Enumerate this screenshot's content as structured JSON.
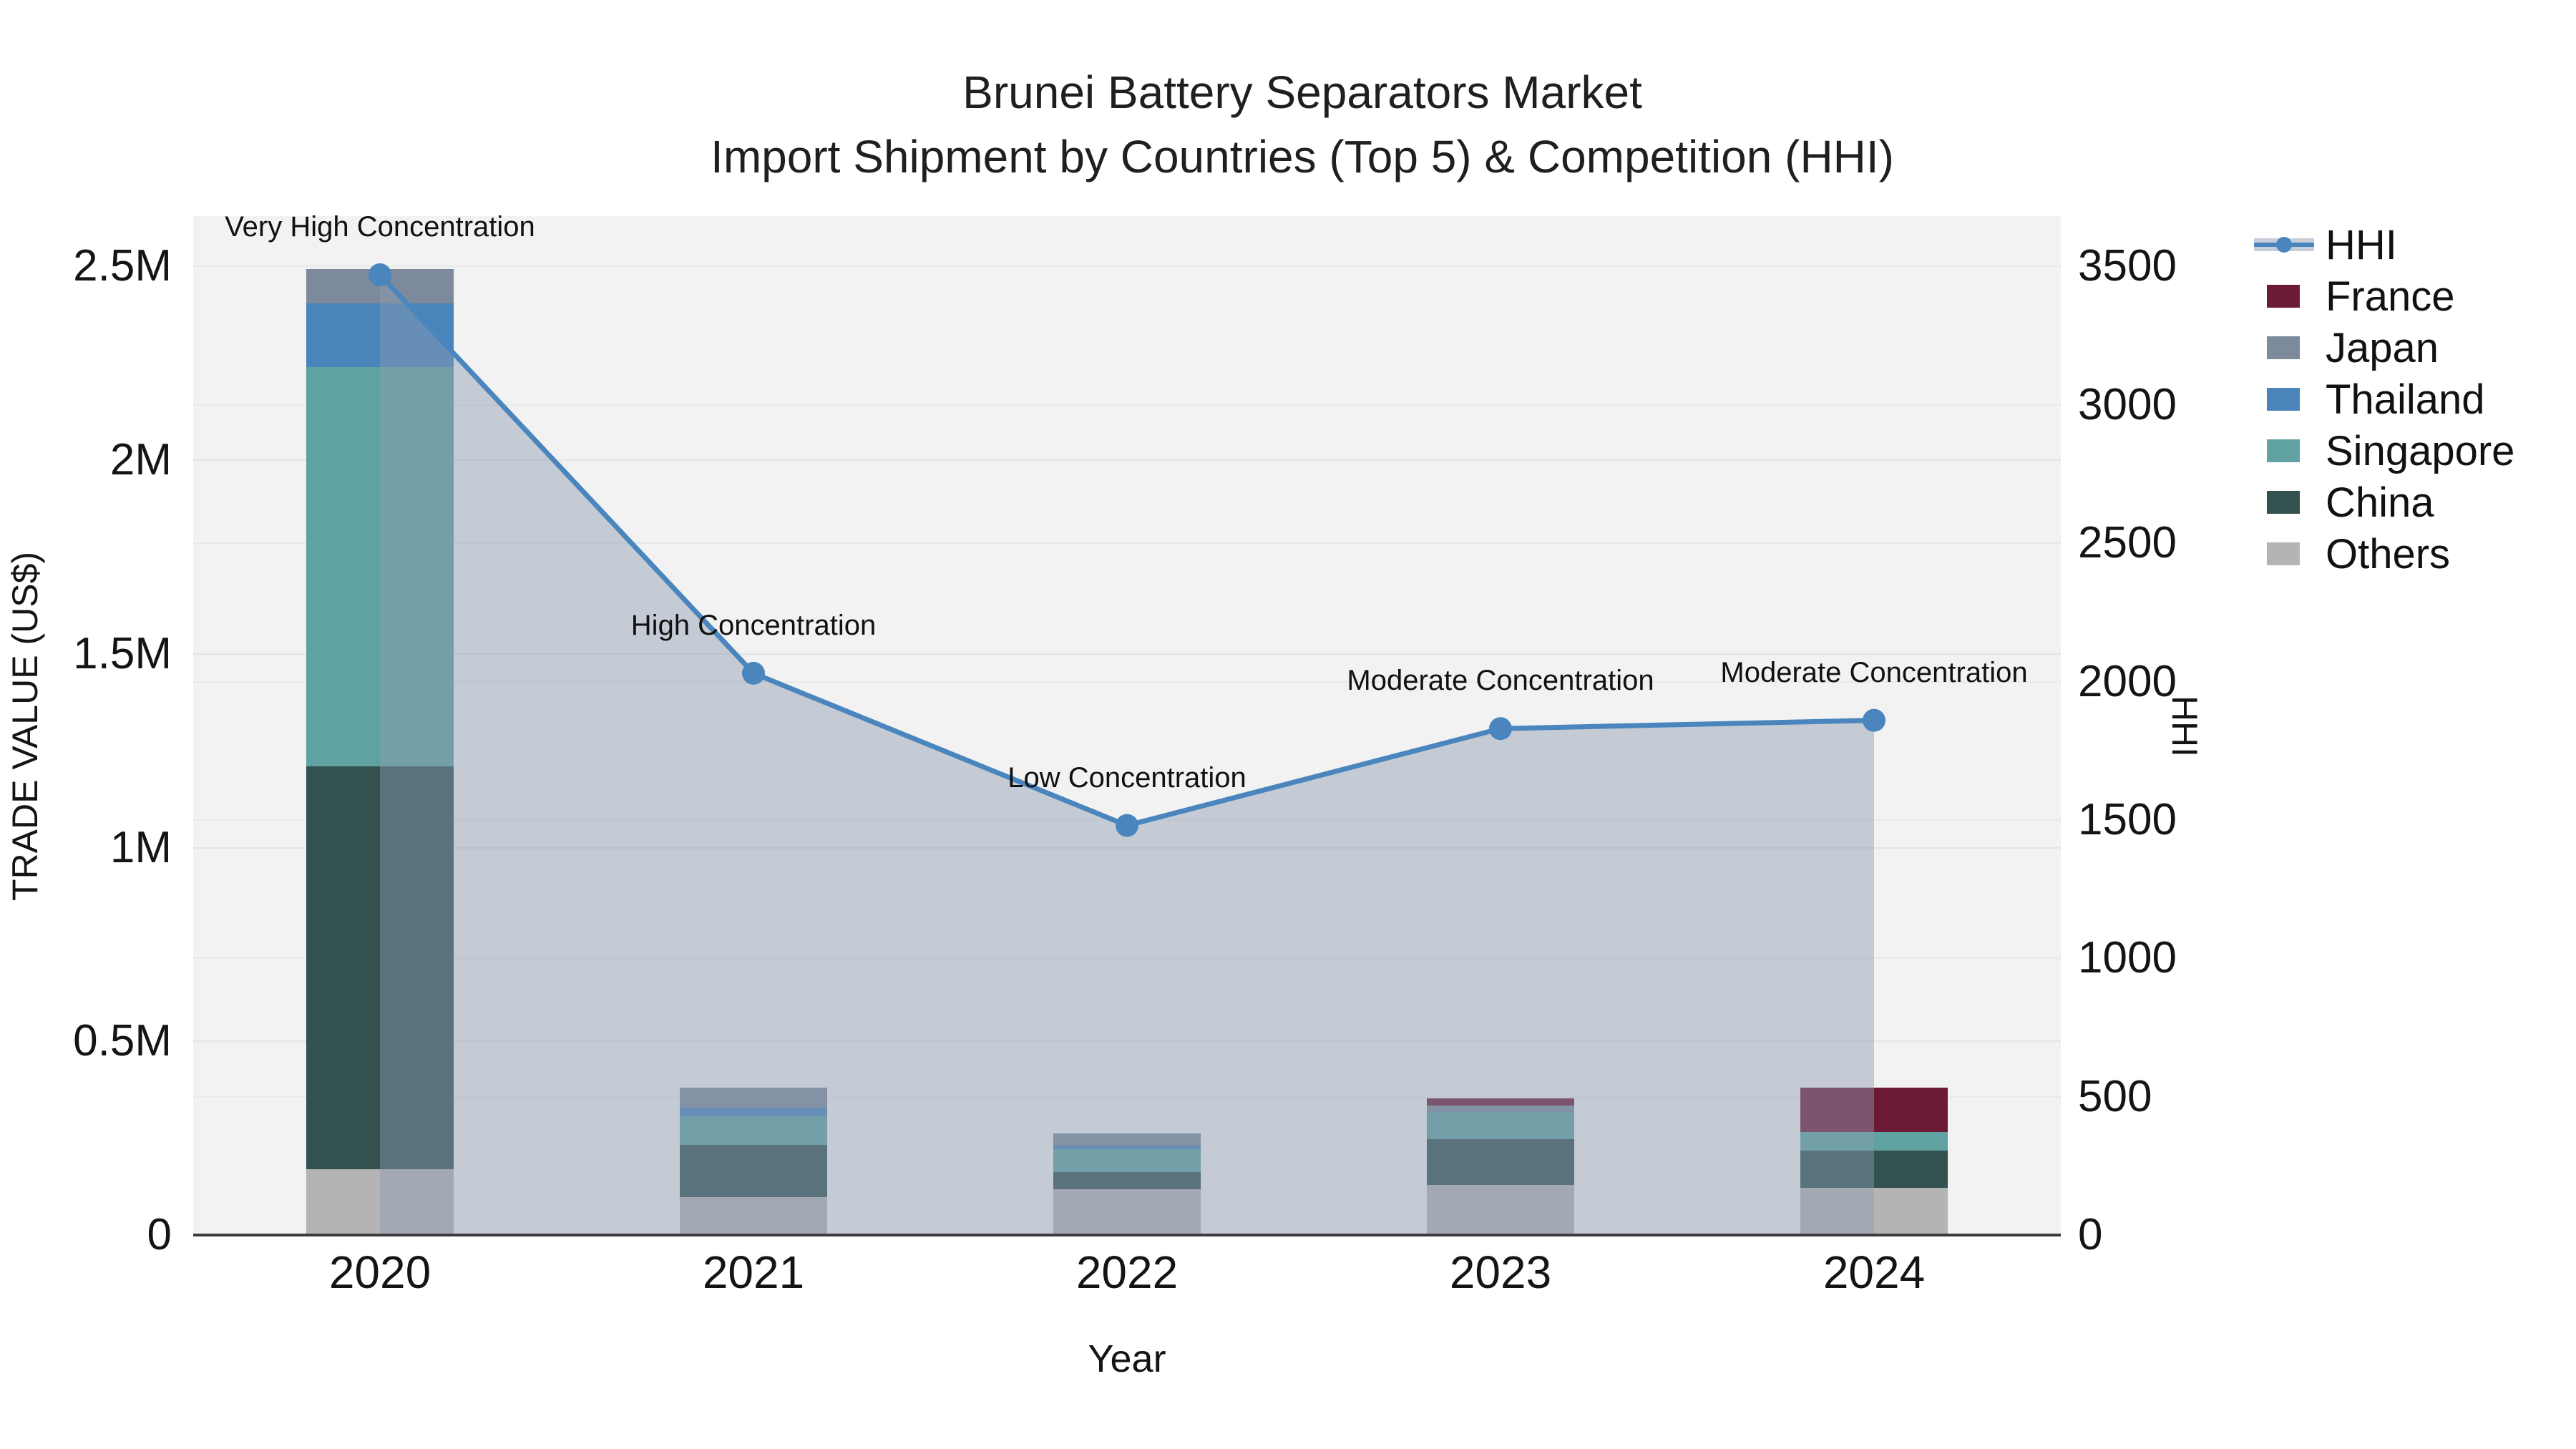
{
  "title": {
    "line1": "Brunei Battery Separators Market",
    "line2": "Import Shipment by Countries (Top 5) & Competition (HHI)"
  },
  "chart_data": {
    "type": "bar+line",
    "categories": [
      "2020",
      "2021",
      "2022",
      "2023",
      "2024"
    ],
    "bar_series": [
      {
        "name": "Others",
        "color": "#b4b4b4",
        "values": [
          170000,
          98000,
          118000,
          129000,
          122000
        ]
      },
      {
        "name": "China",
        "color": "#32514f",
        "values": [
          1040000,
          134000,
          44000,
          118000,
          96000
        ]
      },
      {
        "name": "Singapore",
        "color": "#5fa2a1",
        "values": [
          1030000,
          74000,
          59000,
          70000,
          48000
        ]
      },
      {
        "name": "Thailand",
        "color": "#4a84bb",
        "values": [
          165000,
          22000,
          9000,
          0,
          0
        ]
      },
      {
        "name": "Japan",
        "color": "#7c8a9b",
        "values": [
          88000,
          52000,
          32000,
          17000,
          0
        ]
      },
      {
        "name": "France",
        "color": "#6d1a36",
        "values": [
          0,
          0,
          0,
          18000,
          115000
        ]
      }
    ],
    "line_series": {
      "name": "HHI",
      "color": "#4a86bd",
      "fill": "rgba(140,155,178,0.45)",
      "values": [
        3470,
        2030,
        1480,
        1830,
        1860
      ]
    },
    "annotations": [
      "Very High Concentration",
      "High Concentration",
      "Low Concentration",
      "Moderate Concentration",
      "Moderate Concentration"
    ],
    "xlabel": "Year",
    "ylabel_left": "TRADE VALUE (US$)",
    "ylabel_right": "HHI",
    "yticks_left": [
      {
        "v": 0,
        "label": "0"
      },
      {
        "v": 500000,
        "label": "0.5M"
      },
      {
        "v": 1000000,
        "label": "1M"
      },
      {
        "v": 1500000,
        "label": "1.5M"
      },
      {
        "v": 2000000,
        "label": "2M"
      },
      {
        "v": 2500000,
        "label": "2.5M"
      }
    ],
    "yticks_right": [
      0,
      500,
      1000,
      1500,
      2000,
      2500,
      3000,
      3500
    ],
    "ylim_left": [
      0,
      2630000
    ],
    "ylim_right": [
      0,
      3682
    ],
    "grid": true,
    "legend_position": "right"
  },
  "legend": {
    "items": [
      {
        "label": "HHI",
        "type": "line",
        "color": "#4a86bd"
      },
      {
        "label": "France",
        "type": "patch",
        "color": "#6d1a36"
      },
      {
        "label": "Japan",
        "type": "patch",
        "color": "#7c8a9b"
      },
      {
        "label": "Thailand",
        "type": "patch",
        "color": "#4a84bb"
      },
      {
        "label": "Singapore",
        "type": "patch",
        "color": "#5fa2a1"
      },
      {
        "label": "China",
        "type": "patch",
        "color": "#32514f"
      },
      {
        "label": "Others",
        "type": "patch",
        "color": "#b4b4b4"
      }
    ]
  }
}
